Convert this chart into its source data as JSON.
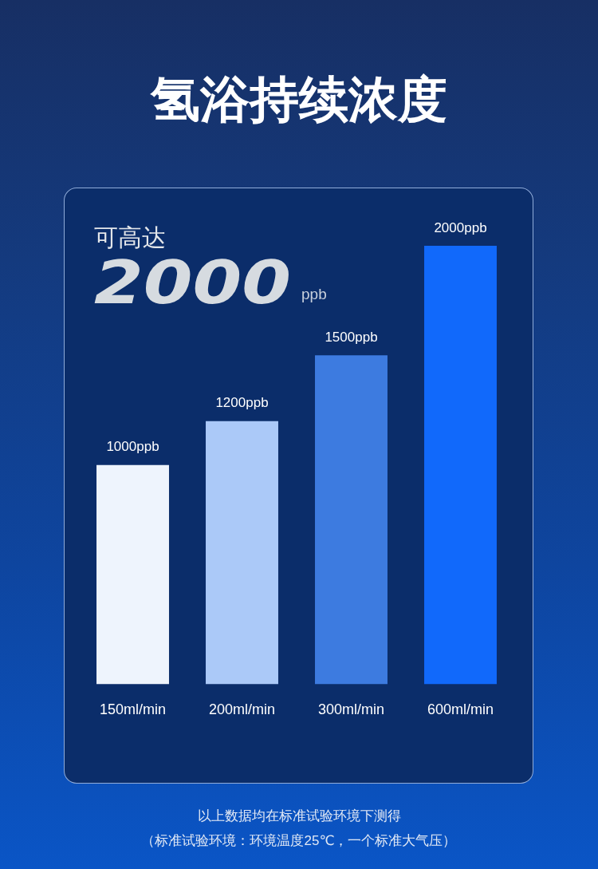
{
  "chart_data": {
    "type": "bar",
    "title": "氢浴持续浓度",
    "categories": [
      "150ml/min",
      "200ml/min",
      "300ml/min",
      "600ml/min"
    ],
    "values": [
      1000,
      1200,
      1500,
      2000
    ],
    "colors": [
      "#eef4fd",
      "#abc9f8",
      "#3d7be0",
      "#1169fb"
    ],
    "value_labels": [
      "1000ppb",
      "1200ppb",
      "1500ppb",
      "2000ppb"
    ],
    "annotations": [
      "可高达",
      "2000",
      "ppb",
      "以上数据均在标准试验环境下测得",
      "（标准试验环境：环境温度25℃，一个标准大气压）"
    ]
  }
}
